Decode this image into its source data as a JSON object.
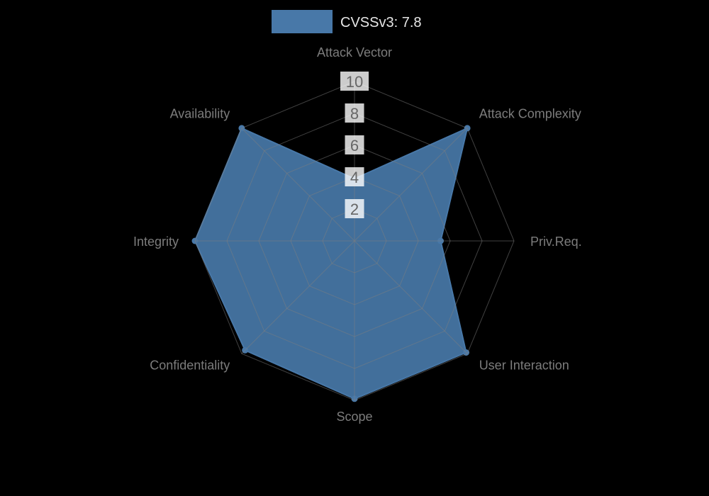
{
  "chart_data": {
    "type": "radar",
    "legend_label": "CVSSv3: 7.8",
    "axes": [
      "Attack Vector",
      "Attack Complexity",
      "Priv.Req.",
      "User Interaction",
      "Scope",
      "Confidentiality",
      "Integrity",
      "Availability"
    ],
    "values": [
      3.9,
      10,
      5.4,
      9.9,
      9.9,
      9.7,
      10,
      10
    ],
    "scale": {
      "min": 0,
      "max": 10,
      "ticks": [
        2,
        4,
        6,
        8,
        10
      ]
    },
    "legend_position": "top-center",
    "grid": true,
    "colors": {
      "series_fill": "#4878A8",
      "grid_line": "#808080",
      "tick_text": "#666666",
      "tick_box": "#ffffff",
      "axis_label": "#7c7c7c",
      "legend_text": "#e6e6e6",
      "background": "#000000"
    }
  }
}
